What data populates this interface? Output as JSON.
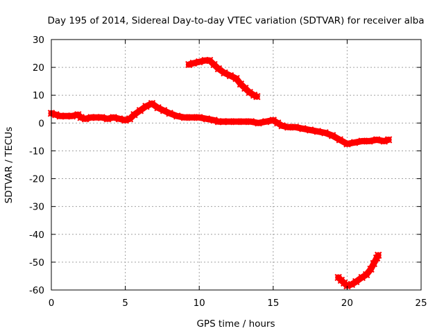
{
  "chart_data": {
    "type": "scatter",
    "title": "Day 195 of 2014, Sidereal Day-to-day VTEC variation (SDTVAR) for receiver alba",
    "xlabel": "GPS time / hours",
    "ylabel": "SDTVAR / TECUs",
    "xlim": [
      0,
      25
    ],
    "ylim": [
      -60,
      30
    ],
    "xticks": [
      0,
      5,
      10,
      15,
      20,
      25
    ],
    "yticks": [
      30,
      20,
      10,
      0,
      -10,
      -20,
      -30,
      -40,
      -50,
      -60
    ],
    "grid": true,
    "series": [
      {
        "name": "main-track",
        "color": "#ff0000",
        "x": [
          0.0,
          0.3,
          0.6,
          1.0,
          1.4,
          1.8,
          2.0,
          2.3,
          2.7,
          3.0,
          3.4,
          3.8,
          4.2,
          4.6,
          5.0,
          5.3,
          5.6,
          6.0,
          6.4,
          6.8,
          7.2,
          7.6,
          8.0,
          8.5,
          9.0,
          9.5,
          10.0,
          10.5,
          11.0,
          11.3,
          11.6,
          12.0,
          12.5,
          13.0,
          13.5,
          14.0,
          14.5,
          15.0,
          15.3,
          15.6,
          16.0,
          16.5,
          17.0,
          17.5,
          18.0,
          18.5,
          19.0,
          19.5,
          20.0,
          20.5,
          21.0,
          21.5,
          22.0,
          22.5,
          22.8
        ],
        "y": [
          3.5,
          3.0,
          2.5,
          2.5,
          2.5,
          3.0,
          2.0,
          1.5,
          2.0,
          2.0,
          2.0,
          1.5,
          2.0,
          1.5,
          1.0,
          1.5,
          3.0,
          4.5,
          6.0,
          7.0,
          5.5,
          4.5,
          3.5,
          2.5,
          2.0,
          2.0,
          2.0,
          1.5,
          1.0,
          0.5,
          0.5,
          0.5,
          0.5,
          0.5,
          0.5,
          0.0,
          0.5,
          1.0,
          0.0,
          -1.0,
          -1.5,
          -1.5,
          -2.0,
          -2.5,
          -3.0,
          -3.5,
          -4.5,
          -6.0,
          -7.5,
          -7.0,
          -6.5,
          -6.5,
          -6.0,
          -6.5,
          -6.0
        ]
      },
      {
        "name": "upper-track",
        "color": "#ff0000",
        "x": [
          9.3,
          9.6,
          10.0,
          10.4,
          10.7,
          11.0,
          11.3,
          11.7,
          12.1,
          12.5,
          12.8,
          13.1,
          13.4,
          13.7,
          13.9
        ],
        "y": [
          21.0,
          21.5,
          22.0,
          22.5,
          22.5,
          21.0,
          19.5,
          18.0,
          17.0,
          16.0,
          14.0,
          12.5,
          11.0,
          10.0,
          9.5
        ]
      },
      {
        "name": "lower-track",
        "color": "#ff0000",
        "x": [
          19.4,
          19.6,
          19.8,
          20.0,
          20.3,
          20.6,
          21.0,
          21.3,
          21.6,
          21.8,
          22.0,
          22.1
        ],
        "y": [
          -55.5,
          -56.5,
          -57.5,
          -58.5,
          -58.0,
          -57.0,
          -55.5,
          -54.5,
          -52.5,
          -50.5,
          -48.5,
          -47.5
        ]
      }
    ]
  }
}
